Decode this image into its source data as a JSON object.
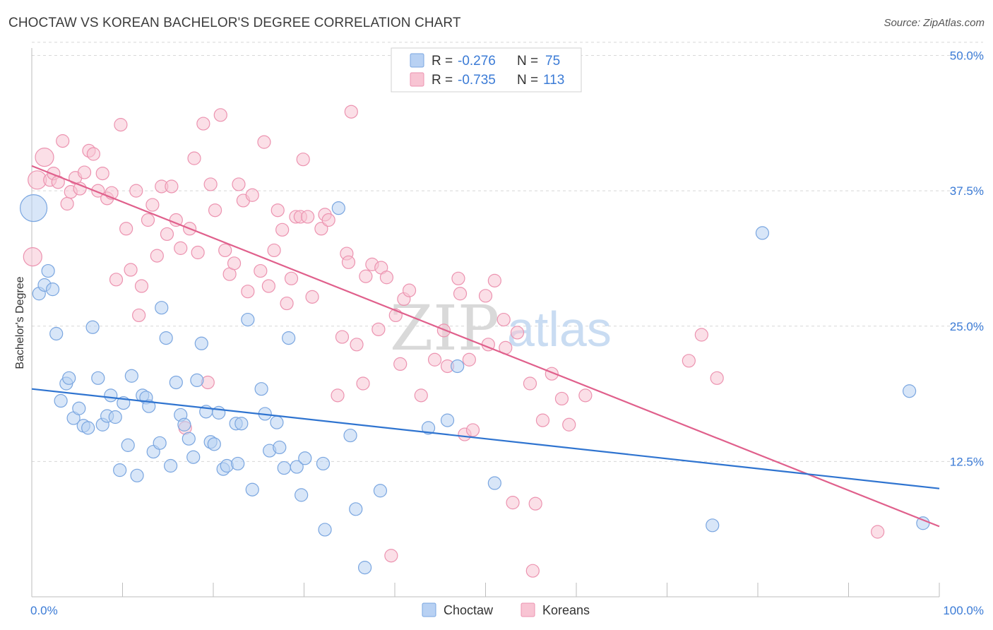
{
  "title": "CHOCTAW VS KOREAN BACHELOR'S DEGREE CORRELATION CHART",
  "source": "Source: ZipAtlas.com",
  "watermark": {
    "zip": "ZIP",
    "atlas": "atlas"
  },
  "colors": {
    "choctaw_fill": "#b8d1f3",
    "choctaw_stroke": "#7aa6e0",
    "choctaw_line": "#2f74d0",
    "korean_fill": "#f8c4d3",
    "korean_stroke": "#ec93b0",
    "korean_line": "#e0608c",
    "tick_text": "#3b7bd6",
    "grid": "#d8d8d8"
  },
  "legend": {
    "rows": [
      {
        "r_label": "R = ",
        "r_value": "-0.276",
        "n_label": "N = ",
        "n_value": "75"
      },
      {
        "r_label": "R = ",
        "r_value": "-0.735",
        "n_label": "N = ",
        "n_value": "113"
      }
    ]
  },
  "chart_data": {
    "type": "scatter",
    "title": "CHOCTAW VS KOREAN BACHELOR'S DEGREE CORRELATION CHART",
    "xlabel": "",
    "ylabel": "Bachelor's Degree",
    "xlim": [
      0,
      100
    ],
    "ylim": [
      0,
      52
    ],
    "x_tick_labels": [
      "0.0%",
      "100.0%"
    ],
    "y_ticks": [
      12.5,
      25.0,
      37.5,
      50.0
    ],
    "y_tick_labels": [
      "12.5%",
      "25.0%",
      "37.5%",
      "50.0%"
    ],
    "grid": true,
    "legend_position": "top-center",
    "series": [
      {
        "name": "Choctaw",
        "trend": {
          "x": [
            0,
            100
          ],
          "y": [
            19.2,
            10.0
          ]
        },
        "points": [
          {
            "x": 0.2,
            "y": 35.9,
            "s": 3
          },
          {
            "x": 0.8,
            "y": 28.0,
            "s": 1
          },
          {
            "x": 1.4,
            "y": 28.8,
            "s": 1
          },
          {
            "x": 1.8,
            "y": 30.1,
            "s": 1
          },
          {
            "x": 2.3,
            "y": 28.4,
            "s": 1
          },
          {
            "x": 2.7,
            "y": 24.3,
            "s": 1
          },
          {
            "x": 3.2,
            "y": 18.1,
            "s": 1
          },
          {
            "x": 3.8,
            "y": 19.7,
            "s": 1
          },
          {
            "x": 4.1,
            "y": 20.2,
            "s": 1
          },
          {
            "x": 4.6,
            "y": 16.5,
            "s": 1
          },
          {
            "x": 5.2,
            "y": 17.4,
            "s": 1
          },
          {
            "x": 5.7,
            "y": 15.8,
            "s": 1
          },
          {
            "x": 6.2,
            "y": 15.6,
            "s": 1
          },
          {
            "x": 6.7,
            "y": 24.9,
            "s": 1
          },
          {
            "x": 7.3,
            "y": 20.2,
            "s": 1
          },
          {
            "x": 7.8,
            "y": 15.9,
            "s": 1
          },
          {
            "x": 8.3,
            "y": 16.7,
            "s": 1
          },
          {
            "x": 8.7,
            "y": 18.6,
            "s": 1
          },
          {
            "x": 9.2,
            "y": 16.6,
            "s": 1
          },
          {
            "x": 9.7,
            "y": 11.7,
            "s": 1
          },
          {
            "x": 10.1,
            "y": 17.9,
            "s": 1
          },
          {
            "x": 10.6,
            "y": 14.0,
            "s": 1
          },
          {
            "x": 11.0,
            "y": 20.4,
            "s": 1
          },
          {
            "x": 11.6,
            "y": 11.2,
            "s": 1
          },
          {
            "x": 12.2,
            "y": 18.6,
            "s": 1
          },
          {
            "x": 12.6,
            "y": 18.4,
            "s": 1
          },
          {
            "x": 12.9,
            "y": 17.6,
            "s": 1
          },
          {
            "x": 13.4,
            "y": 13.4,
            "s": 1
          },
          {
            "x": 14.1,
            "y": 14.2,
            "s": 1
          },
          {
            "x": 14.3,
            "y": 26.7,
            "s": 1
          },
          {
            "x": 14.8,
            "y": 23.9,
            "s": 1
          },
          {
            "x": 15.3,
            "y": 12.1,
            "s": 1
          },
          {
            "x": 15.9,
            "y": 19.8,
            "s": 1
          },
          {
            "x": 16.4,
            "y": 16.8,
            "s": 1
          },
          {
            "x": 16.8,
            "y": 15.9,
            "s": 1
          },
          {
            "x": 17.3,
            "y": 14.6,
            "s": 1
          },
          {
            "x": 17.8,
            "y": 12.9,
            "s": 1
          },
          {
            "x": 18.2,
            "y": 20.0,
            "s": 1
          },
          {
            "x": 18.7,
            "y": 23.4,
            "s": 1
          },
          {
            "x": 19.2,
            "y": 17.1,
            "s": 1
          },
          {
            "x": 19.7,
            "y": 14.3,
            "s": 1
          },
          {
            "x": 20.1,
            "y": 14.1,
            "s": 1
          },
          {
            "x": 20.6,
            "y": 17.0,
            "s": 1
          },
          {
            "x": 21.1,
            "y": 11.8,
            "s": 1
          },
          {
            "x": 21.5,
            "y": 12.1,
            "s": 1
          },
          {
            "x": 22.5,
            "y": 16.0,
            "s": 1
          },
          {
            "x": 22.7,
            "y": 12.3,
            "s": 1
          },
          {
            "x": 23.1,
            "y": 16.0,
            "s": 1
          },
          {
            "x": 23.8,
            "y": 25.6,
            "s": 1
          },
          {
            "x": 24.3,
            "y": 9.9,
            "s": 1
          },
          {
            "x": 25.3,
            "y": 19.2,
            "s": 1
          },
          {
            "x": 25.7,
            "y": 16.9,
            "s": 1
          },
          {
            "x": 26.2,
            "y": 13.5,
            "s": 1
          },
          {
            "x": 27.0,
            "y": 16.1,
            "s": 1
          },
          {
            "x": 27.3,
            "y": 13.8,
            "s": 1
          },
          {
            "x": 27.8,
            "y": 11.9,
            "s": 1
          },
          {
            "x": 28.3,
            "y": 23.9,
            "s": 1
          },
          {
            "x": 29.2,
            "y": 12.0,
            "s": 1
          },
          {
            "x": 29.7,
            "y": 9.4,
            "s": 1
          },
          {
            "x": 30.1,
            "y": 12.8,
            "s": 1
          },
          {
            "x": 32.1,
            "y": 12.3,
            "s": 1
          },
          {
            "x": 32.3,
            "y": 6.2,
            "s": 1
          },
          {
            "x": 33.8,
            "y": 35.9,
            "s": 1
          },
          {
            "x": 35.1,
            "y": 14.9,
            "s": 1
          },
          {
            "x": 35.7,
            "y": 8.1,
            "s": 1
          },
          {
            "x": 36.7,
            "y": 2.7,
            "s": 1
          },
          {
            "x": 38.4,
            "y": 9.8,
            "s": 1
          },
          {
            "x": 43.7,
            "y": 15.6,
            "s": 1
          },
          {
            "x": 45.8,
            "y": 16.3,
            "s": 1
          },
          {
            "x": 46.9,
            "y": 21.3,
            "s": 1
          },
          {
            "x": 51.0,
            "y": 10.5,
            "s": 1
          },
          {
            "x": 75.0,
            "y": 6.6,
            "s": 1
          },
          {
            "x": 80.5,
            "y": 33.6,
            "s": 1
          },
          {
            "x": 96.7,
            "y": 19.0,
            "s": 1
          },
          {
            "x": 98.2,
            "y": 6.8,
            "s": 1
          }
        ]
      },
      {
        "name": "Koreans",
        "trend": {
          "x": [
            0,
            100
          ],
          "y": [
            39.8,
            6.5
          ]
        },
        "points": [
          {
            "x": 0.1,
            "y": 31.4,
            "s": 2
          },
          {
            "x": 0.6,
            "y": 38.5,
            "s": 2
          },
          {
            "x": 1.4,
            "y": 40.6,
            "s": 2
          },
          {
            "x": 2.0,
            "y": 38.5,
            "s": 1
          },
          {
            "x": 2.4,
            "y": 39.1,
            "s": 1
          },
          {
            "x": 2.9,
            "y": 38.3,
            "s": 1
          },
          {
            "x": 3.4,
            "y": 42.1,
            "s": 1
          },
          {
            "x": 3.9,
            "y": 36.3,
            "s": 1
          },
          {
            "x": 4.3,
            "y": 37.4,
            "s": 1
          },
          {
            "x": 4.8,
            "y": 38.7,
            "s": 1
          },
          {
            "x": 5.3,
            "y": 37.7,
            "s": 1
          },
          {
            "x": 5.8,
            "y": 39.2,
            "s": 1
          },
          {
            "x": 6.3,
            "y": 41.2,
            "s": 1
          },
          {
            "x": 6.8,
            "y": 40.9,
            "s": 1
          },
          {
            "x": 7.3,
            "y": 37.5,
            "s": 1
          },
          {
            "x": 7.8,
            "y": 39.1,
            "s": 1
          },
          {
            "x": 8.3,
            "y": 36.8,
            "s": 1
          },
          {
            "x": 8.8,
            "y": 37.3,
            "s": 1
          },
          {
            "x": 9.3,
            "y": 29.3,
            "s": 1
          },
          {
            "x": 9.8,
            "y": 43.6,
            "s": 1
          },
          {
            "x": 10.4,
            "y": 34.0,
            "s": 1
          },
          {
            "x": 10.9,
            "y": 30.2,
            "s": 1
          },
          {
            "x": 11.5,
            "y": 37.5,
            "s": 1
          },
          {
            "x": 11.8,
            "y": 26.0,
            "s": 1
          },
          {
            "x": 12.1,
            "y": 28.7,
            "s": 1
          },
          {
            "x": 12.8,
            "y": 34.8,
            "s": 1
          },
          {
            "x": 13.3,
            "y": 36.2,
            "s": 1
          },
          {
            "x": 13.8,
            "y": 31.5,
            "s": 1
          },
          {
            "x": 14.3,
            "y": 37.9,
            "s": 1
          },
          {
            "x": 14.9,
            "y": 33.5,
            "s": 1
          },
          {
            "x": 15.4,
            "y": 37.9,
            "s": 1
          },
          {
            "x": 15.9,
            "y": 34.8,
            "s": 1
          },
          {
            "x": 16.4,
            "y": 32.2,
            "s": 1
          },
          {
            "x": 16.9,
            "y": 15.6,
            "s": 1
          },
          {
            "x": 17.4,
            "y": 34.0,
            "s": 1
          },
          {
            "x": 17.9,
            "y": 40.5,
            "s": 1
          },
          {
            "x": 18.3,
            "y": 31.8,
            "s": 1
          },
          {
            "x": 18.9,
            "y": 43.7,
            "s": 1
          },
          {
            "x": 19.4,
            "y": 19.8,
            "s": 1
          },
          {
            "x": 19.7,
            "y": 38.1,
            "s": 1
          },
          {
            "x": 20.2,
            "y": 35.7,
            "s": 1
          },
          {
            "x": 20.8,
            "y": 44.5,
            "s": 1
          },
          {
            "x": 21.3,
            "y": 32.0,
            "s": 1
          },
          {
            "x": 21.8,
            "y": 29.8,
            "s": 1
          },
          {
            "x": 22.3,
            "y": 30.8,
            "s": 1
          },
          {
            "x": 22.8,
            "y": 38.1,
            "s": 1
          },
          {
            "x": 23.3,
            "y": 36.6,
            "s": 1
          },
          {
            "x": 23.8,
            "y": 28.2,
            "s": 1
          },
          {
            "x": 24.3,
            "y": 37.1,
            "s": 1
          },
          {
            "x": 25.2,
            "y": 30.1,
            "s": 1
          },
          {
            "x": 25.6,
            "y": 42.0,
            "s": 1
          },
          {
            "x": 26.1,
            "y": 28.7,
            "s": 1
          },
          {
            "x": 26.7,
            "y": 32.0,
            "s": 1
          },
          {
            "x": 27.1,
            "y": 35.7,
            "s": 1
          },
          {
            "x": 27.6,
            "y": 33.9,
            "s": 1
          },
          {
            "x": 28.1,
            "y": 27.1,
            "s": 1
          },
          {
            "x": 28.6,
            "y": 29.4,
            "s": 1
          },
          {
            "x": 29.1,
            "y": 35.1,
            "s": 1
          },
          {
            "x": 29.6,
            "y": 35.1,
            "s": 1
          },
          {
            "x": 29.9,
            "y": 40.4,
            "s": 1
          },
          {
            "x": 30.4,
            "y": 35.1,
            "s": 1
          },
          {
            "x": 30.9,
            "y": 27.7,
            "s": 1
          },
          {
            "x": 31.9,
            "y": 34.0,
            "s": 1
          },
          {
            "x": 32.3,
            "y": 35.3,
            "s": 1
          },
          {
            "x": 32.7,
            "y": 34.8,
            "s": 1
          },
          {
            "x": 33.7,
            "y": 18.6,
            "s": 1
          },
          {
            "x": 34.2,
            "y": 24.0,
            "s": 1
          },
          {
            "x": 34.7,
            "y": 31.7,
            "s": 1
          },
          {
            "x": 34.9,
            "y": 30.9,
            "s": 1
          },
          {
            "x": 35.2,
            "y": 44.8,
            "s": 1
          },
          {
            "x": 35.8,
            "y": 23.3,
            "s": 1
          },
          {
            "x": 36.5,
            "y": 19.7,
            "s": 1
          },
          {
            "x": 36.8,
            "y": 29.6,
            "s": 1
          },
          {
            "x": 37.5,
            "y": 30.7,
            "s": 1
          },
          {
            "x": 38.5,
            "y": 30.4,
            "s": 1
          },
          {
            "x": 38.2,
            "y": 24.7,
            "s": 1
          },
          {
            "x": 39.1,
            "y": 29.5,
            "s": 1
          },
          {
            "x": 39.6,
            "y": 3.8,
            "s": 1
          },
          {
            "x": 40.1,
            "y": 26.0,
            "s": 1
          },
          {
            "x": 40.6,
            "y": 21.5,
            "s": 1
          },
          {
            "x": 41.0,
            "y": 27.5,
            "s": 1
          },
          {
            "x": 41.6,
            "y": 28.3,
            "s": 1
          },
          {
            "x": 42.9,
            "y": 18.6,
            "s": 1
          },
          {
            "x": 44.4,
            "y": 21.9,
            "s": 1
          },
          {
            "x": 45.4,
            "y": 24.6,
            "s": 1
          },
          {
            "x": 45.8,
            "y": 21.3,
            "s": 1
          },
          {
            "x": 47.0,
            "y": 29.4,
            "s": 1
          },
          {
            "x": 47.2,
            "y": 28.0,
            "s": 1
          },
          {
            "x": 47.7,
            "y": 15.0,
            "s": 1
          },
          {
            "x": 48.2,
            "y": 21.9,
            "s": 1
          },
          {
            "x": 48.6,
            "y": 15.4,
            "s": 1
          },
          {
            "x": 50.0,
            "y": 27.8,
            "s": 1
          },
          {
            "x": 50.3,
            "y": 23.3,
            "s": 1
          },
          {
            "x": 51.0,
            "y": 29.2,
            "s": 1
          },
          {
            "x": 52.0,
            "y": 25.6,
            "s": 1
          },
          {
            "x": 52.2,
            "y": 23.0,
            "s": 1
          },
          {
            "x": 53.0,
            "y": 8.7,
            "s": 1
          },
          {
            "x": 53.5,
            "y": 24.4,
            "s": 1
          },
          {
            "x": 54.9,
            "y": 19.7,
            "s": 1
          },
          {
            "x": 55.2,
            "y": 2.4,
            "s": 1
          },
          {
            "x": 55.5,
            "y": 8.6,
            "s": 1
          },
          {
            "x": 56.3,
            "y": 16.3,
            "s": 1
          },
          {
            "x": 57.3,
            "y": 20.6,
            "s": 1
          },
          {
            "x": 58.4,
            "y": 18.3,
            "s": 1
          },
          {
            "x": 59.2,
            "y": 15.9,
            "s": 1
          },
          {
            "x": 61.0,
            "y": 18.6,
            "s": 1
          },
          {
            "x": 72.4,
            "y": 21.8,
            "s": 1
          },
          {
            "x": 73.8,
            "y": 24.2,
            "s": 1
          },
          {
            "x": 75.5,
            "y": 20.2,
            "s": 1
          },
          {
            "x": 93.2,
            "y": 6.0,
            "s": 1
          }
        ]
      }
    ]
  }
}
